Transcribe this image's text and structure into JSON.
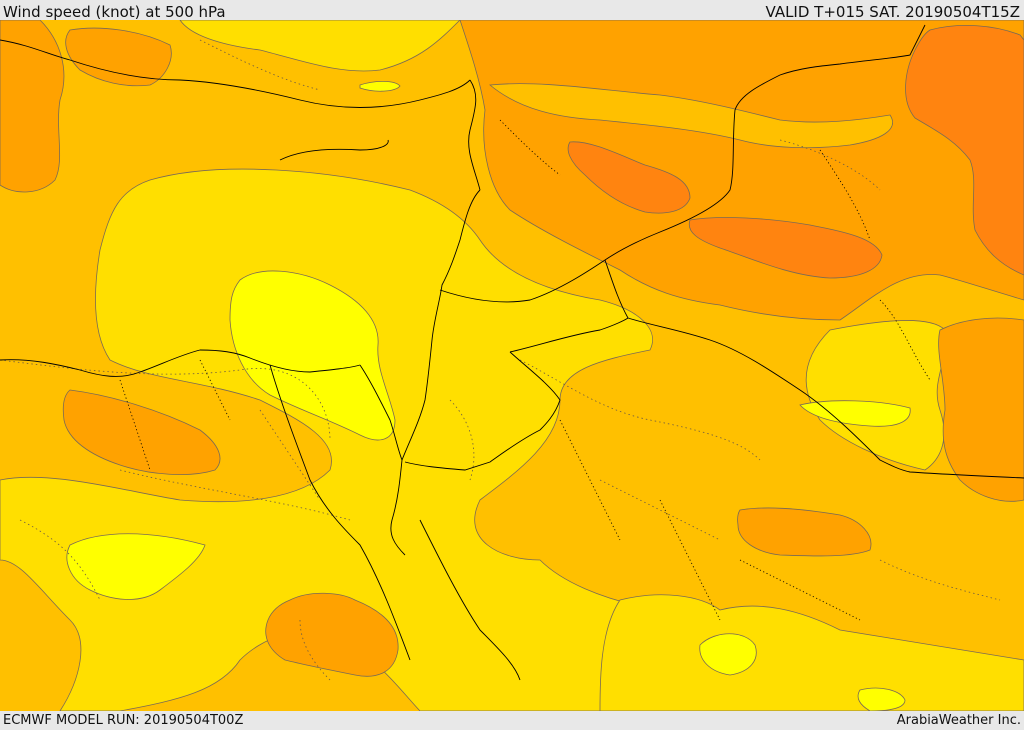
{
  "header": {
    "title": "Wind speed (knot) at 500 hPa",
    "valid": "VALID T+015 SAT. 20190504T15Z"
  },
  "footer": {
    "model_run": "ECMWF MODEL RUN: 20190504T00Z",
    "credit": "ArabiaWeather Inc."
  },
  "colors": {
    "band_low": "#ffff00",
    "band_mid_low": "#ffdf00",
    "band_mid": "#ffc000",
    "band_mid_high": "#ffa200",
    "band_high": "#ff8410",
    "contour": "#7a6a55",
    "boundary": "#000000"
  }
}
